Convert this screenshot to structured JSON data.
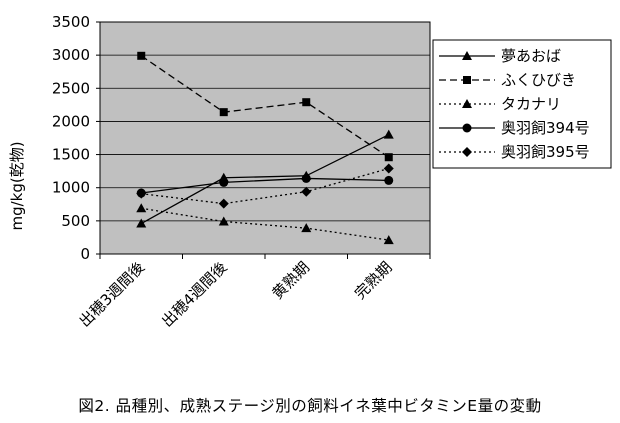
{
  "chart_data": {
    "type": "line",
    "ylabel": "mg/kg(乾物)",
    "ylim": [
      0,
      3500
    ],
    "yticks": [
      0,
      500,
      1000,
      1500,
      2000,
      2500,
      3000,
      3500
    ],
    "categories": [
      "出穂3週間後",
      "出穂4週間後",
      "黄熟期",
      "完熟期"
    ],
    "grid": true,
    "legend": "right",
    "plot_bg": "#c0c0c0",
    "series": [
      {
        "name": "夢あおば",
        "values": [
          460,
          1150,
          1180,
          1800
        ],
        "marker": "triangle",
        "dash": "solid"
      },
      {
        "name": "ふくひびき",
        "values": [
          2990,
          2140,
          2290,
          1460
        ],
        "marker": "square",
        "dash": "dashed"
      },
      {
        "name": "タカナリ",
        "values": [
          690,
          490,
          390,
          210
        ],
        "marker": "triangle",
        "dash": "dotted"
      },
      {
        "name": "奥羽飼394号",
        "values": [
          920,
          1080,
          1140,
          1110
        ],
        "marker": "circle",
        "dash": "solid"
      },
      {
        "name": "奥羽飼395号",
        "values": [
          910,
          760,
          940,
          1290
        ],
        "marker": "diamond",
        "dash": "dotted"
      }
    ]
  },
  "caption": "図2. 品種別、成熟ステージ別の飼料イネ葉中ビタミンE量の変動"
}
